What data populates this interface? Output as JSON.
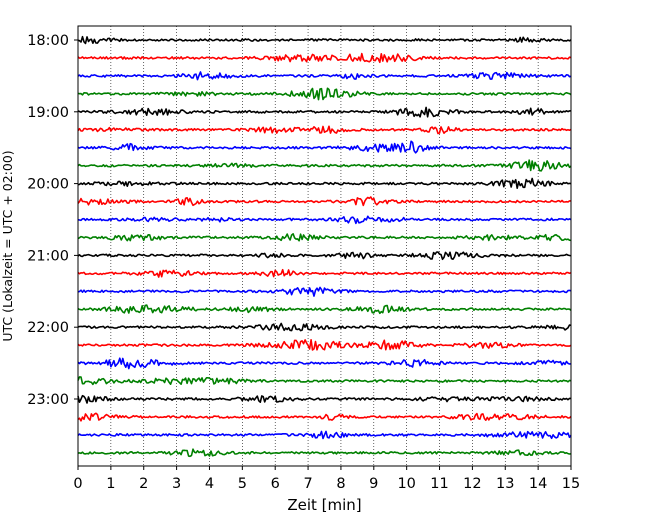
{
  "chart_data": {
    "type": "line",
    "title": "",
    "xlabel": "Zeit  [min]",
    "ylabel": "UTC (Lokalzeit = UTC + 02:00)",
    "xlim": [
      0,
      15
    ],
    "x_ticks": [
      "0",
      "1",
      "2",
      "3",
      "4",
      "5",
      "6",
      "7",
      "8",
      "9",
      "10",
      "11",
      "12",
      "13",
      "14",
      "15"
    ],
    "y_ticks": [
      "18:00",
      "19:00",
      "20:00",
      "21:00",
      "22:00",
      "23:00"
    ],
    "grid": "vertical dotted",
    "trace_interval_min": 15,
    "colors": [
      "#000000",
      "#ff0000",
      "#0000ff",
      "#008000"
    ],
    "traces": [
      {
        "time": "18:00",
        "color": "#000000"
      },
      {
        "time": "18:15",
        "color": "#ff0000"
      },
      {
        "time": "18:30",
        "color": "#0000ff"
      },
      {
        "time": "18:45",
        "color": "#008000"
      },
      {
        "time": "19:00",
        "color": "#000000"
      },
      {
        "time": "19:15",
        "color": "#ff0000"
      },
      {
        "time": "19:30",
        "color": "#0000ff"
      },
      {
        "time": "19:45",
        "color": "#008000"
      },
      {
        "time": "20:00",
        "color": "#000000"
      },
      {
        "time": "20:15",
        "color": "#ff0000"
      },
      {
        "time": "20:30",
        "color": "#0000ff"
      },
      {
        "time": "20:45",
        "color": "#008000"
      },
      {
        "time": "21:00",
        "color": "#000000"
      },
      {
        "time": "21:15",
        "color": "#ff0000"
      },
      {
        "time": "21:30",
        "color": "#0000ff"
      },
      {
        "time": "21:45",
        "color": "#008000"
      },
      {
        "time": "22:00",
        "color": "#000000"
      },
      {
        "time": "22:15",
        "color": "#ff0000"
      },
      {
        "time": "22:30",
        "color": "#0000ff"
      },
      {
        "time": "22:45",
        "color": "#008000"
      },
      {
        "time": "23:00",
        "color": "#000000"
      },
      {
        "time": "23:15",
        "color": "#ff0000"
      },
      {
        "time": "23:30",
        "color": "#0000ff"
      },
      {
        "time": "23:45",
        "color": "#008000"
      }
    ]
  }
}
